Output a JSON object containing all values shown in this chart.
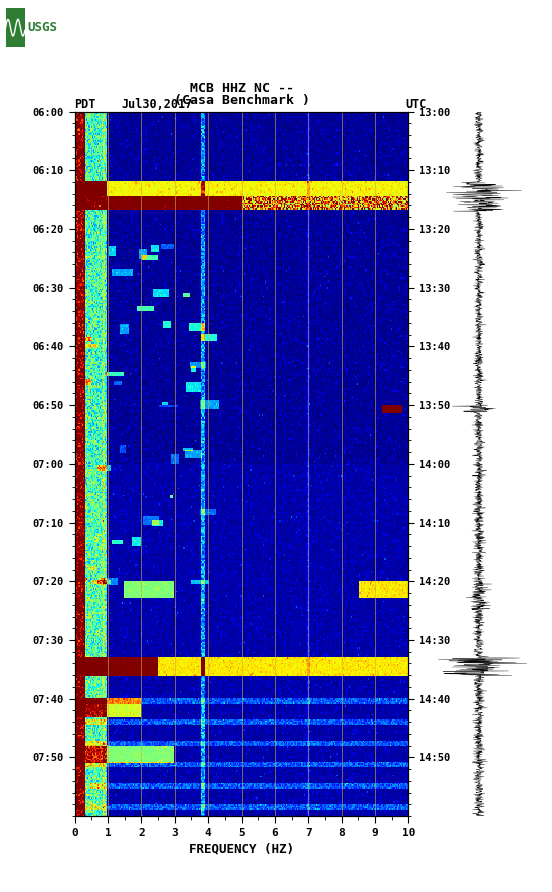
{
  "title_line1": "MCB HHZ NC --",
  "title_line2": "(Casa Benchmark )",
  "label_left": "PDT",
  "label_date": "Jul30,2017",
  "label_right": "UTC",
  "pdt_times": [
    "06:00",
    "06:10",
    "06:20",
    "06:30",
    "06:40",
    "06:50",
    "07:00",
    "07:10",
    "07:20",
    "07:30",
    "07:40",
    "07:50"
  ],
  "utc_times": [
    "13:00",
    "13:10",
    "13:20",
    "13:30",
    "13:40",
    "13:50",
    "14:00",
    "14:10",
    "14:20",
    "14:30",
    "14:40",
    "14:50"
  ],
  "tick_positions": [
    0,
    10,
    20,
    30,
    40,
    50,
    60,
    70,
    80,
    90,
    100,
    110
  ],
  "freq_min": 0,
  "freq_max": 10,
  "xlabel": "FREQUENCY (HZ)",
  "background_color": "#ffffff",
  "fig_width": 5.52,
  "fig_height": 8.92,
  "dpi": 100,
  "usgs_green": "#2e7d32",
  "vline_freqs": [
    1,
    2,
    3,
    4,
    5,
    6,
    7,
    8,
    9
  ],
  "vline_color": "#d4a843",
  "vline_alpha": 0.7
}
